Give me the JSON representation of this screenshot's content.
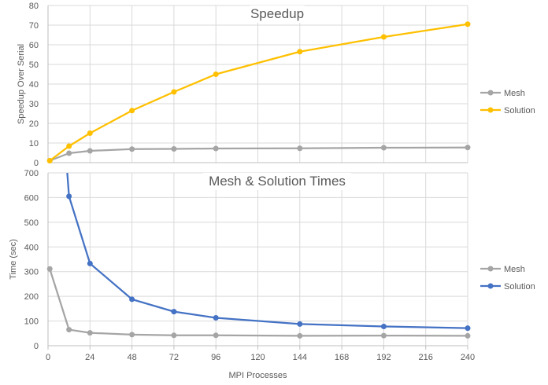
{
  "colors": {
    "mesh_top": "#a5a5a5",
    "solution_top": "#ffc000",
    "mesh_bottom": "#a5a5a5",
    "solution_bottom": "#4472c4",
    "grid": "#d9d9d9",
    "axis": "#bfbfbf",
    "text": "#595959"
  },
  "chart_data": [
    {
      "type": "line",
      "title": "Speedup",
      "xlabel": "",
      "ylabel": "Speedup Over Serial",
      "xlim": [
        0,
        240
      ],
      "ylim": [
        0,
        80
      ],
      "y_ticks": [
        0,
        10,
        20,
        30,
        40,
        50,
        60,
        70,
        80
      ],
      "grid": true,
      "legend_position": "right",
      "series": [
        {
          "name": "Mesh",
          "color": "#a5a5a5",
          "points": [
            [
              1,
              1
            ],
            [
              12,
              4.8
            ],
            [
              24,
              6
            ],
            [
              48,
              6.9
            ],
            [
              72,
              7
            ],
            [
              96,
              7.2
            ],
            [
              144,
              7.3
            ],
            [
              192,
              7.6
            ],
            [
              240,
              7.7
            ]
          ]
        },
        {
          "name": "Solution",
          "color": "#ffc000",
          "points": [
            [
              1,
              1
            ],
            [
              12,
              8.4
            ],
            [
              24,
              15
            ],
            [
              48,
              26.5
            ],
            [
              72,
              36
            ],
            [
              96,
              45
            ],
            [
              144,
              56.5
            ],
            [
              192,
              64
            ],
            [
              240,
              70.5
            ]
          ]
        }
      ]
    },
    {
      "type": "line",
      "title": "Mesh & Solution Times",
      "xlabel": "MPI Processes",
      "ylabel": "Time (sec)",
      "xlim": [
        0,
        240
      ],
      "ylim": [
        0,
        700
      ],
      "x_ticks": [
        0,
        24,
        48,
        72,
        96,
        120,
        144,
        168,
        192,
        216,
        240
      ],
      "y_ticks": [
        0,
        100,
        200,
        300,
        400,
        500,
        600,
        700
      ],
      "grid": true,
      "legend_position": "right",
      "series": [
        {
          "name": "Mesh",
          "color": "#a5a5a5",
          "points": [
            [
              1,
              311
            ],
            [
              12,
              65
            ],
            [
              24,
              52
            ],
            [
              48,
              45
            ],
            [
              72,
              42
            ],
            [
              96,
              42
            ],
            [
              144,
              40
            ],
            [
              192,
              41
            ],
            [
              240,
              40
            ]
          ]
        },
        {
          "name": "Solution",
          "color": "#4472c4",
          "points": [
            [
              12,
              605
            ],
            [
              24,
              333
            ],
            [
              48,
              188
            ],
            [
              72,
              138
            ],
            [
              96,
              113
            ],
            [
              144,
              88
            ],
            [
              192,
              78
            ],
            [
              240,
              71
            ]
          ],
          "offscale_segment_from": [
            11,
            700
          ]
        }
      ]
    }
  ]
}
